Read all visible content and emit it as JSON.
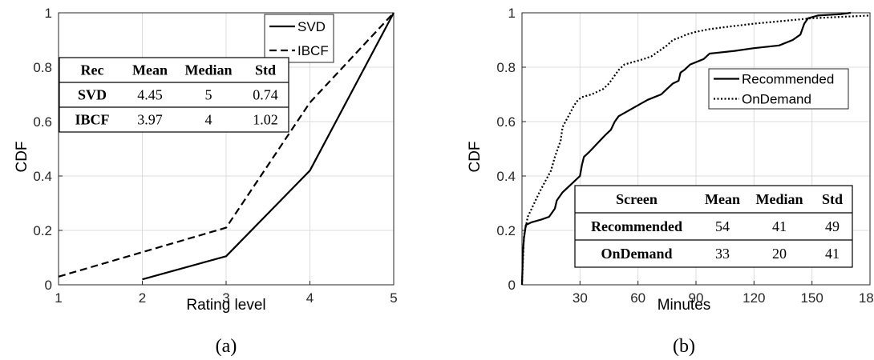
{
  "chart_data": [
    {
      "type": "line",
      "panel_label": "(a)",
      "xlabel": "Rating level",
      "ylabel": "CDF",
      "xlim": [
        1,
        5
      ],
      "ylim": [
        0,
        1
      ],
      "xticks": [
        1,
        2,
        3,
        4,
        5
      ],
      "yticks": [
        0,
        0.2,
        0.4,
        0.6,
        0.8,
        1
      ],
      "grid": true,
      "legend_position": "top-right",
      "series": [
        {
          "name": "SVD",
          "style": "solid",
          "color": "#000000",
          "points": [
            [
              2,
              0.02
            ],
            [
              3,
              0.105
            ],
            [
              4,
              0.42
            ],
            [
              5,
              1.0
            ]
          ]
        },
        {
          "name": "IBCF",
          "style": "dashed",
          "color": "#000000",
          "points": [
            [
              1,
              0.03
            ],
            [
              2,
              0.12
            ],
            [
              3,
              0.21
            ],
            [
              4,
              0.67
            ],
            [
              5,
              1.0
            ]
          ]
        }
      ],
      "table": {
        "headers": [
          "Rec",
          "Mean",
          "Median",
          "Std"
        ],
        "rows": [
          [
            "SVD",
            "4.45",
            "5",
            "0.74"
          ],
          [
            "IBCF",
            "3.97",
            "4",
            "1.02"
          ]
        ]
      }
    },
    {
      "type": "line",
      "panel_label": "(b)",
      "xlabel": "Minutes",
      "ylabel": "CDF",
      "xlim": [
        0,
        180
      ],
      "ylim": [
        0,
        1
      ],
      "xticks": [
        30,
        60,
        90,
        120,
        150,
        180
      ],
      "yticks": [
        0,
        0.2,
        0.4,
        0.6,
        0.8,
        1
      ],
      "grid": true,
      "legend_position": "right",
      "series": [
        {
          "name": "Recommended",
          "style": "solid",
          "color": "#000000",
          "points": [
            [
              0,
              0
            ],
            [
              0.5,
              0.12
            ],
            [
              1,
              0.17
            ],
            [
              2,
              0.22
            ],
            [
              5,
              0.23
            ],
            [
              10,
              0.24
            ],
            [
              14,
              0.25
            ],
            [
              17,
              0.28
            ],
            [
              18,
              0.31
            ],
            [
              21,
              0.34
            ],
            [
              24,
              0.36
            ],
            [
              27,
              0.38
            ],
            [
              30,
              0.4
            ],
            [
              31,
              0.44
            ],
            [
              32,
              0.47
            ],
            [
              35,
              0.49
            ],
            [
              39,
              0.52
            ],
            [
              43,
              0.55
            ],
            [
              46,
              0.57
            ],
            [
              48,
              0.6
            ],
            [
              50,
              0.62
            ],
            [
              55,
              0.64
            ],
            [
              60,
              0.66
            ],
            [
              65,
              0.68
            ],
            [
              72,
              0.7
            ],
            [
              75,
              0.72
            ],
            [
              78,
              0.74
            ],
            [
              81,
              0.75
            ],
            [
              82,
              0.78
            ],
            [
              84,
              0.79
            ],
            [
              87,
              0.81
            ],
            [
              94,
              0.83
            ],
            [
              97,
              0.85
            ],
            [
              110,
              0.86
            ],
            [
              120,
              0.87
            ],
            [
              133,
              0.88
            ],
            [
              140,
              0.9
            ],
            [
              144,
              0.92
            ],
            [
              146,
              0.96
            ],
            [
              148,
              0.98
            ],
            [
              153,
              0.99
            ],
            [
              165,
              0.995
            ],
            [
              170,
              1.0
            ]
          ]
        },
        {
          "name": "OnDemand",
          "style": "dotted",
          "color": "#000000",
          "points": [
            [
              0,
              0
            ],
            [
              1,
              0.18
            ],
            [
              3,
              0.25
            ],
            [
              7,
              0.31
            ],
            [
              9,
              0.34
            ],
            [
              12,
              0.38
            ],
            [
              15,
              0.42
            ],
            [
              17,
              0.47
            ],
            [
              20,
              0.53
            ],
            [
              21,
              0.58
            ],
            [
              24,
              0.62
            ],
            [
              27,
              0.66
            ],
            [
              29,
              0.68
            ],
            [
              31,
              0.69
            ],
            [
              36,
              0.7
            ],
            [
              42,
              0.72
            ],
            [
              45,
              0.74
            ],
            [
              47,
              0.76
            ],
            [
              50,
              0.79
            ],
            [
              53,
              0.81
            ],
            [
              58,
              0.82
            ],
            [
              63,
              0.83
            ],
            [
              67,
              0.84
            ],
            [
              71,
              0.86
            ],
            [
              75,
              0.88
            ],
            [
              78,
              0.9
            ],
            [
              82,
              0.91
            ],
            [
              85,
              0.92
            ],
            [
              90,
              0.93
            ],
            [
              97,
              0.94
            ],
            [
              108,
              0.95
            ],
            [
              120,
              0.96
            ],
            [
              135,
              0.97
            ],
            [
              150,
              0.98
            ],
            [
              165,
              0.985
            ],
            [
              180,
              0.99
            ]
          ]
        }
      ],
      "table": {
        "headers": [
          "Screen",
          "Mean",
          "Median",
          "Std"
        ],
        "rows": [
          [
            "Recommended",
            "54",
            "41",
            "49"
          ],
          [
            "OnDemand",
            "33",
            "20",
            "41"
          ]
        ]
      }
    }
  ]
}
